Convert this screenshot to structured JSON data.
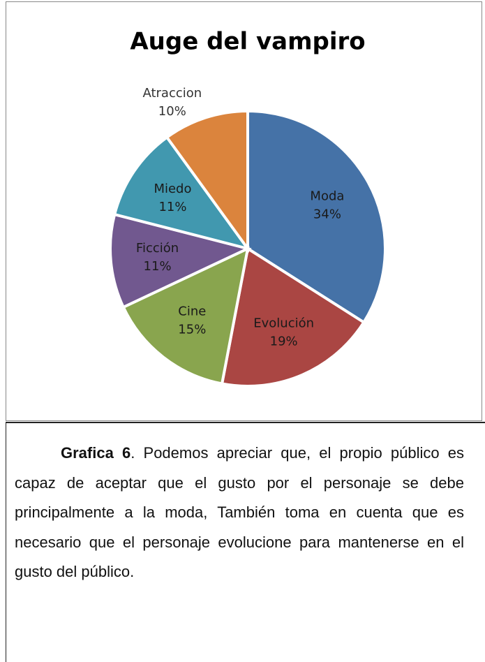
{
  "chart_data": {
    "type": "pie",
    "title": "Auge del vampiro",
    "categories": [
      "Moda",
      "Evolución",
      "Cine",
      "Ficción",
      "Miedo",
      "Atraccion"
    ],
    "values": [
      34,
      19,
      15,
      11,
      11,
      10
    ],
    "value_labels": [
      "34%",
      "19%",
      "15%",
      "11%",
      "11%",
      "10%"
    ],
    "colors": [
      "#4572a7",
      "#aa4643",
      "#89a54e",
      "#71588f",
      "#4198af",
      "#db843d"
    ]
  },
  "caption": {
    "label": "Grafica 6",
    "text": ". Podemos apreciar que, el propio público es capaz de aceptar que el gusto por el personaje se debe principalmente a la moda, También toma en cuenta que es necesario que el  personaje evolucione para mantenerse en el gusto del público."
  }
}
